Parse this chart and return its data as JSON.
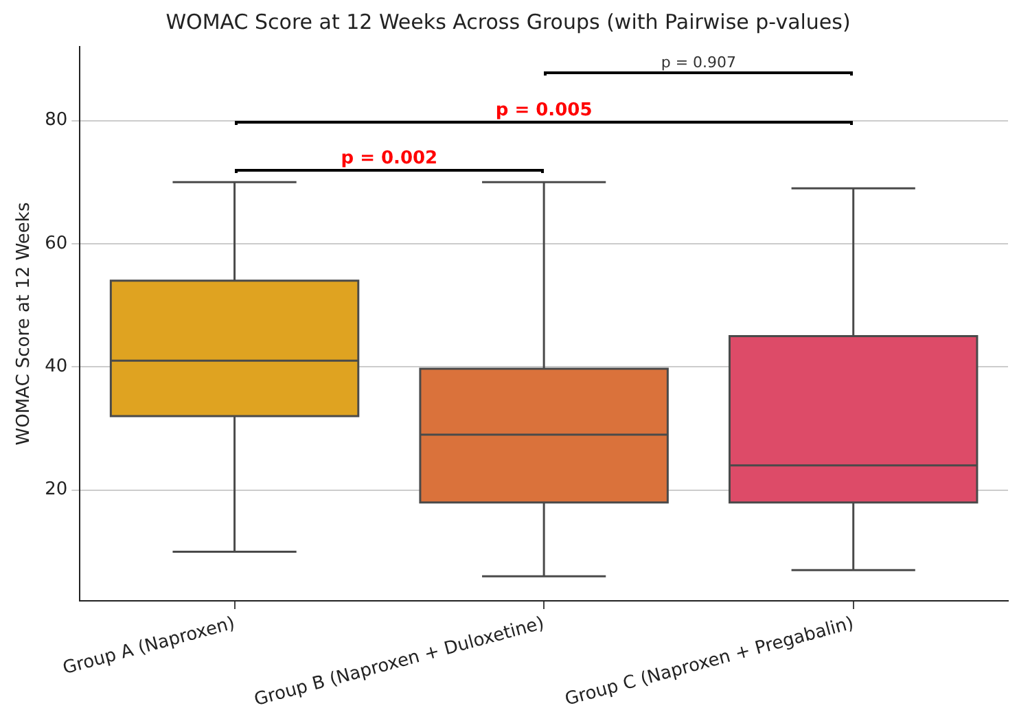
{
  "chart_data": {
    "type": "box",
    "title": "WOMAC Score at 12 Weeks Across Groups (with Pairwise p-values)",
    "ylabel": "WOMAC Score at 12 Weeks",
    "categories": [
      "Group A (Naproxen)",
      "Group B (Naproxen + Duloxetine)",
      "Group C (Naproxen + Pregabalin)"
    ],
    "colors": [
      "#dfa321",
      "#da723b",
      "#dd4b68"
    ],
    "boxes": [
      {
        "low": 10,
        "q1": 32,
        "median": 41,
        "q3": 54,
        "high": 70
      },
      {
        "low": 6,
        "q1": 18,
        "median": 29,
        "q3": 39.7,
        "high": 70
      },
      {
        "low": 7,
        "q1": 18,
        "median": 24,
        "q3": 45,
        "high": 69
      }
    ],
    "ylim": [
      2,
      92
    ],
    "yticks": [
      20,
      40,
      60,
      80
    ],
    "grid": "y",
    "annotations": [
      "p = 0.002",
      "p = 0.005",
      "p = 0.907"
    ]
  }
}
